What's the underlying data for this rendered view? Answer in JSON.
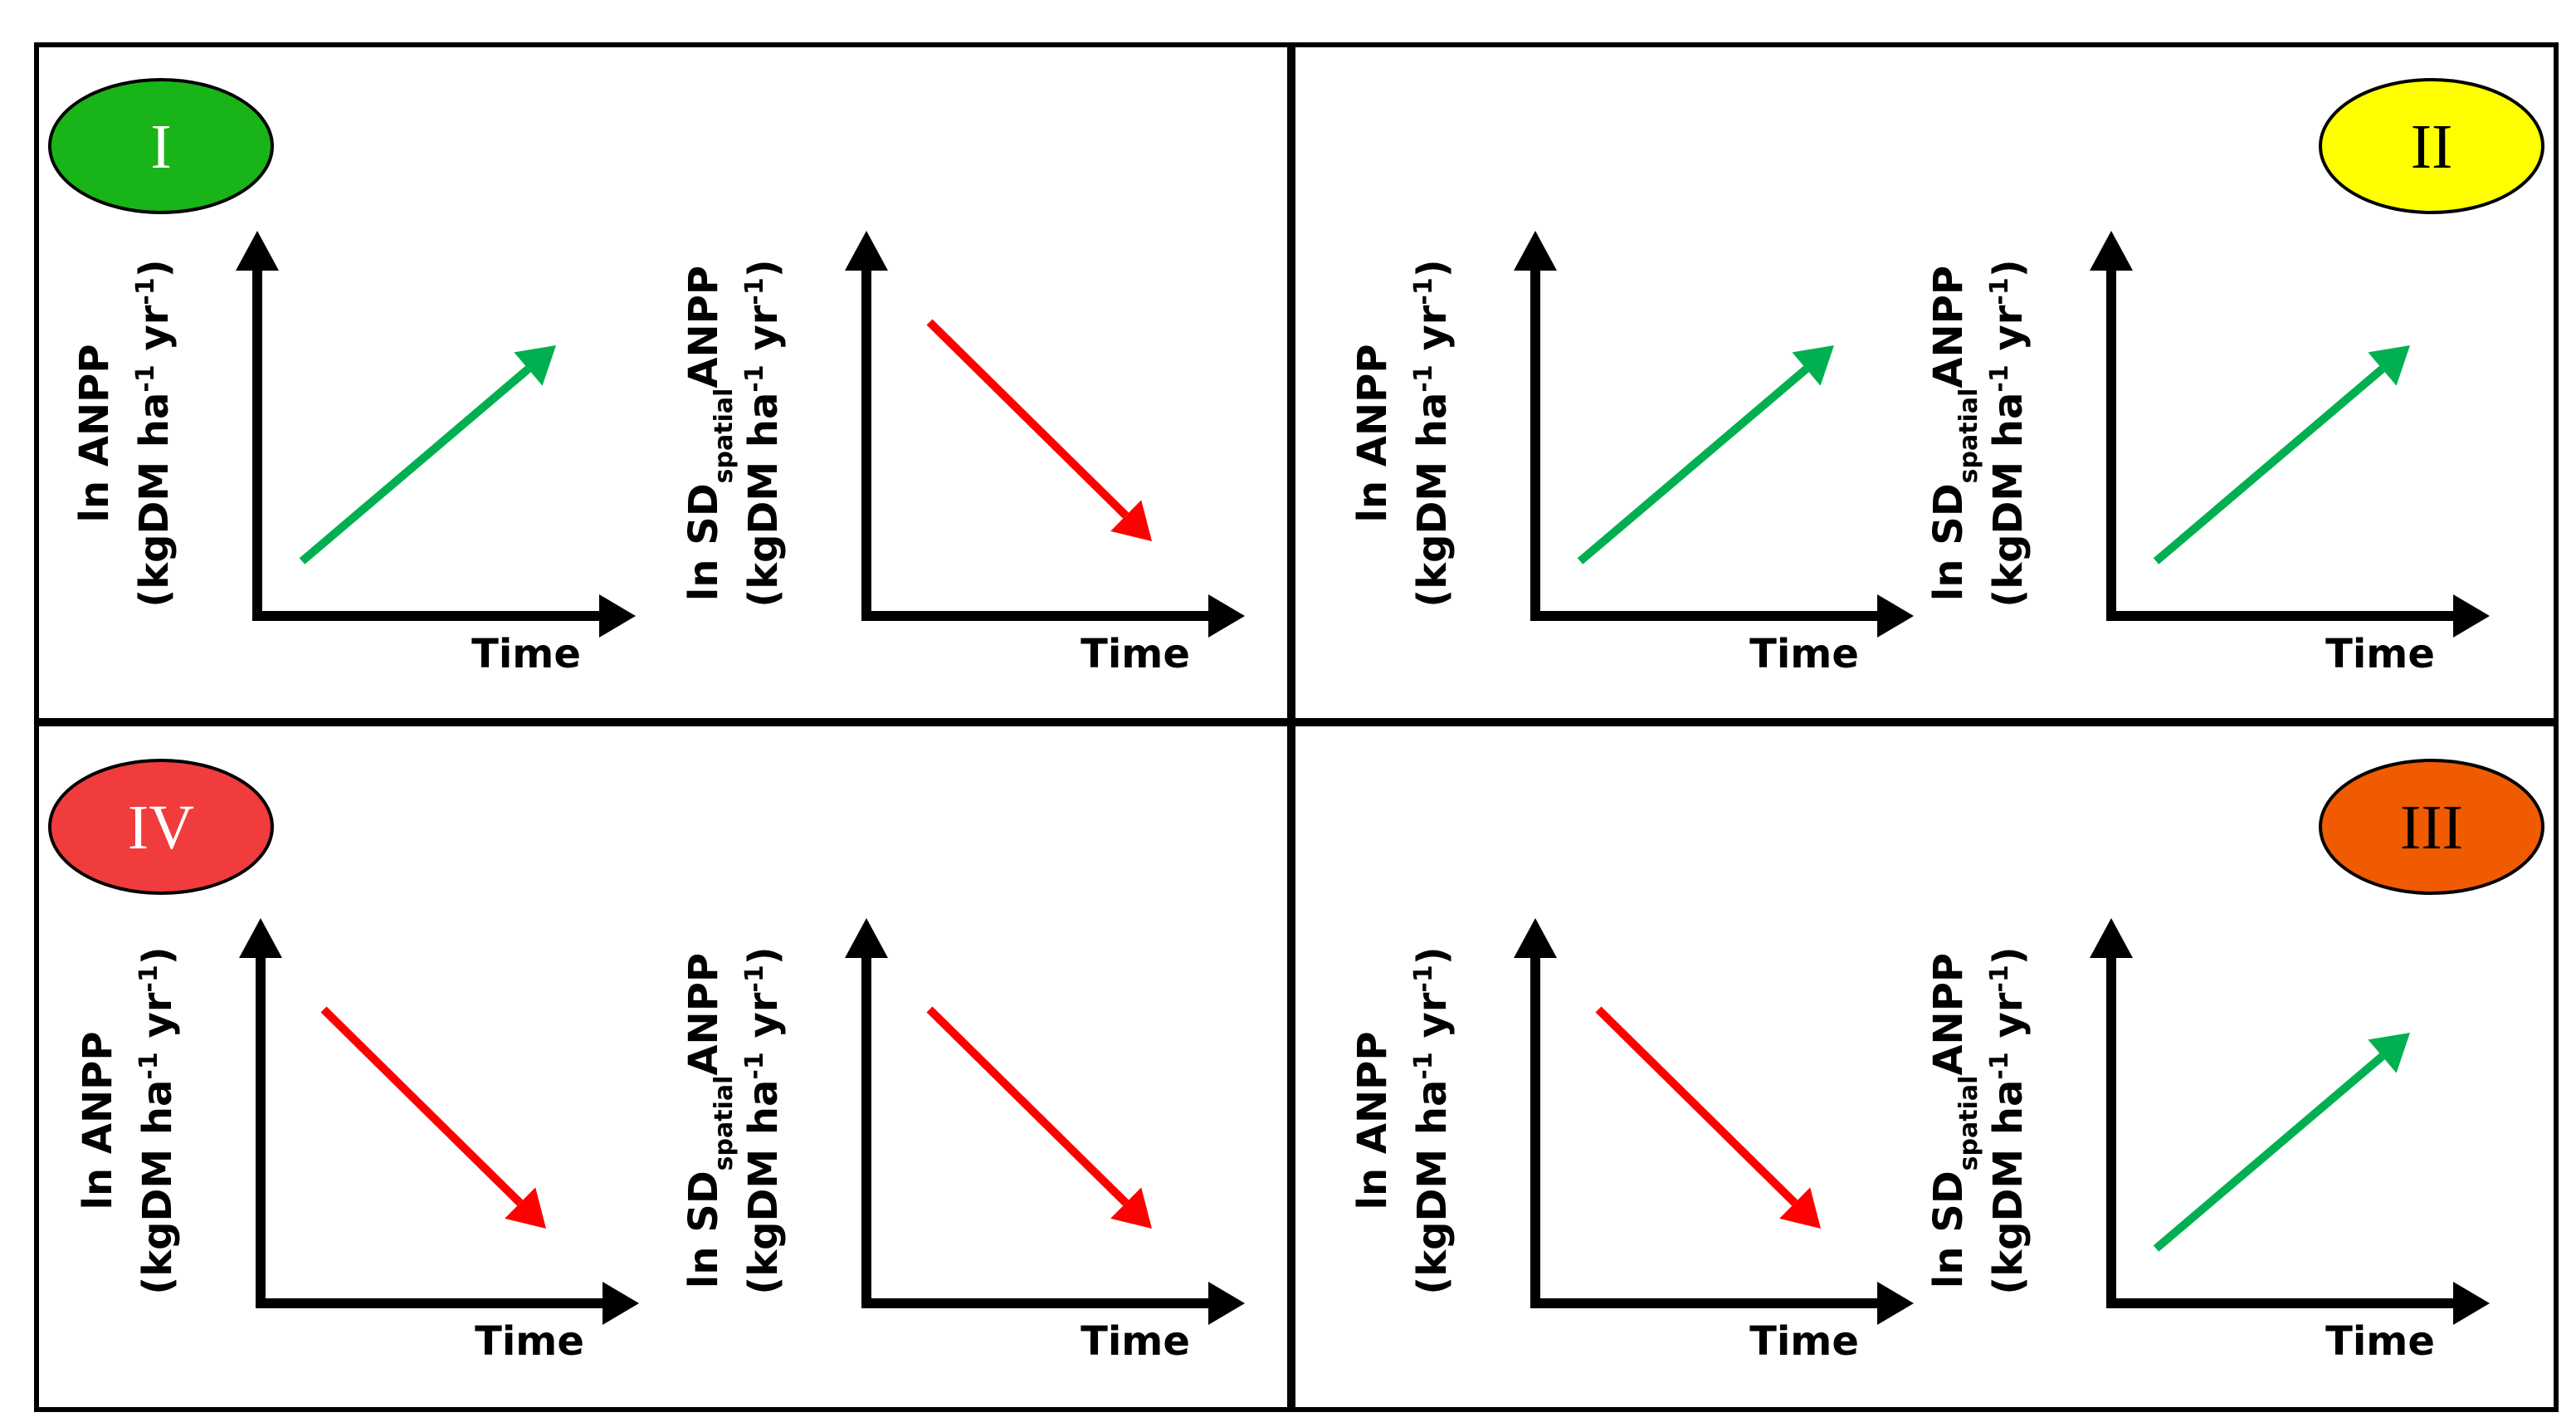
{
  "quadrants": [
    {
      "label": "I",
      "label_fill": "#18b418",
      "label_text_color": "#ffffff",
      "panels": [
        {
          "y_label": [
            [
              {
                "text": "ln ANPP"
              }
            ],
            [
              {
                "text": "(kgDM ha"
              },
              {
                "text": "-1",
                "script": "sup"
              },
              {
                "text": " yr"
              },
              {
                "text": "-1",
                "script": "sup"
              },
              {
                "text": ")"
              }
            ]
          ],
          "x_label": "Time",
          "trend": "up",
          "arrow_color": "#00b050"
        },
        {
          "y_label": [
            [
              {
                "text": "ln SD"
              },
              {
                "text": "spatial",
                "script": "sub"
              },
              {
                "text": "ANPP"
              }
            ],
            [
              {
                "text": "(kgDM ha"
              },
              {
                "text": "-1",
                "script": "sup"
              },
              {
                "text": " yr"
              },
              {
                "text": "-1",
                "script": "sup"
              },
              {
                "text": ")"
              }
            ]
          ],
          "x_label": "Time",
          "trend": "down",
          "arrow_color": "#ff0000"
        }
      ]
    },
    {
      "label": "II",
      "label_fill": "#ffff00",
      "label_text_color": "#000000",
      "panels": [
        {
          "y_label": [
            [
              {
                "text": "ln ANPP"
              }
            ],
            [
              {
                "text": "(kgDM ha"
              },
              {
                "text": "-1",
                "script": "sup"
              },
              {
                "text": " yr"
              },
              {
                "text": "-1",
                "script": "sup"
              },
              {
                "text": ")"
              }
            ]
          ],
          "x_label": "Time",
          "trend": "up",
          "arrow_color": "#00b050"
        },
        {
          "y_label": [
            [
              {
                "text": "ln SD"
              },
              {
                "text": "spatial",
                "script": "sub"
              },
              {
                "text": "ANPP"
              }
            ],
            [
              {
                "text": "(kgDM ha"
              },
              {
                "text": "-1",
                "script": "sup"
              },
              {
                "text": " yr"
              },
              {
                "text": "-1",
                "script": "sup"
              },
              {
                "text": ")"
              }
            ]
          ],
          "x_label": "Time",
          "trend": "up",
          "arrow_color": "#00b050"
        }
      ]
    },
    {
      "label": "IV",
      "label_fill": "#f03c3c",
      "label_text_color": "#ffffff",
      "panels": [
        {
          "y_label": [
            [
              {
                "text": "ln ANPP"
              }
            ],
            [
              {
                "text": "(kgDM ha"
              },
              {
                "text": "-1",
                "script": "sup"
              },
              {
                "text": " yr"
              },
              {
                "text": "-1",
                "script": "sup"
              },
              {
                "text": ")"
              }
            ]
          ],
          "x_label": "Time",
          "trend": "down",
          "arrow_color": "#ff0000"
        },
        {
          "y_label": [
            [
              {
                "text": "ln SD"
              },
              {
                "text": "spatial",
                "script": "sub"
              },
              {
                "text": "ANPP"
              }
            ],
            [
              {
                "text": "(kgDM ha"
              },
              {
                "text": "-1",
                "script": "sup"
              },
              {
                "text": " yr"
              },
              {
                "text": "-1",
                "script": "sup"
              },
              {
                "text": ")"
              }
            ]
          ],
          "x_label": "Time",
          "trend": "down",
          "arrow_color": "#ff0000"
        }
      ]
    },
    {
      "label": "III",
      "label_fill": "#f05a00",
      "label_text_color": "#000000",
      "panels": [
        {
          "y_label": [
            [
              {
                "text": "ln ANPP"
              }
            ],
            [
              {
                "text": "(kgDM ha"
              },
              {
                "text": "-1",
                "script": "sup"
              },
              {
                "text": " yr"
              },
              {
                "text": "-1",
                "script": "sup"
              },
              {
                "text": ")"
              }
            ]
          ],
          "x_label": "Time",
          "trend": "down",
          "arrow_color": "#ff0000"
        },
        {
          "y_label": [
            [
              {
                "text": "ln SD"
              },
              {
                "text": "spatial",
                "script": "sub"
              },
              {
                "text": "ANPP"
              }
            ],
            [
              {
                "text": "(kgDM ha"
              },
              {
                "text": "-1",
                "script": "sup"
              },
              {
                "text": " yr"
              },
              {
                "text": "-1",
                "script": "sup"
              },
              {
                "text": ")"
              }
            ]
          ],
          "x_label": "Time",
          "trend": "up",
          "arrow_color": "#00b050"
        }
      ]
    }
  ]
}
